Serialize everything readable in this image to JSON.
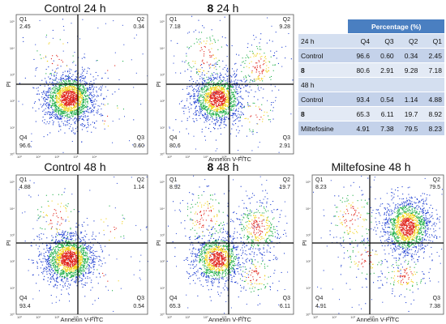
{
  "chart_data": [
    {
      "type": "scatter",
      "title_bold": "",
      "title": "Control 24 h",
      "xlabel": "Annexin V-FITC",
      "ylabel": "PI",
      "quadrants": {
        "Q1": "2.45",
        "Q2": "0.34",
        "Q3": "0.60",
        "Q4": "96.6"
      },
      "show_xlabel": false
    },
    {
      "type": "scatter",
      "title_bold": "8",
      "title": "24 h",
      "xlabel": "Annexin V-FITC",
      "ylabel": "PI",
      "quadrants": {
        "Q1": "7.18",
        "Q2": "9.28",
        "Q3": "2.91",
        "Q4": "80.6"
      },
      "show_xlabel": true
    },
    {
      "type": "scatter",
      "title_bold": "",
      "title": "Control 48 h",
      "xlabel": "Annexin V-FITC",
      "ylabel": "PI",
      "quadrants": {
        "Q1": "4.88",
        "Q2": "1.14",
        "Q3": "0.54",
        "Q4": "93.4"
      },
      "show_xlabel": true
    },
    {
      "type": "scatter",
      "title_bold": "8",
      "title": "48 h",
      "xlabel": "Annexin V-FITC",
      "ylabel": "PI",
      "quadrants": {
        "Q1": "8.92",
        "Q2": "19.7",
        "Q3": "6.11",
        "Q4": "65.3"
      },
      "show_xlabel": true
    },
    {
      "type": "scatter",
      "title_bold": "",
      "title": "Miltefosine 48 h",
      "xlabel": "Annexin V-FITC",
      "ylabel": "PI",
      "quadrants": {
        "Q1": "8.23",
        "Q2": "79.5",
        "Q3": "7.38",
        "Q4": "4.91"
      },
      "show_xlabel": true
    },
    {
      "type": "table",
      "header": "Percentage (%)",
      "columns": [
        "24 h",
        "Q4",
        "Q3",
        "Q2",
        "Q1"
      ],
      "rows": [
        {
          "label": "Control",
          "bold": false,
          "values": [
            "96.6",
            "0.60",
            "0.34",
            "2.45"
          ]
        },
        {
          "label": "8",
          "bold": true,
          "values": [
            "80.6",
            "2.91",
            "9.28",
            "7.18"
          ]
        },
        {
          "label": "48 h",
          "bold": false,
          "values": [
            "",
            "",
            "",
            ""
          ]
        },
        {
          "label": "Control",
          "bold": false,
          "values": [
            "93.4",
            "0.54",
            "1.14",
            "4.88"
          ]
        },
        {
          "label": "8",
          "bold": true,
          "values": [
            "65.3",
            "6.11",
            "19.7",
            "8.92"
          ]
        },
        {
          "label": "Miltefosine",
          "bold": false,
          "values": [
            "4.91",
            "7.38",
            "79.5",
            "8.23"
          ]
        }
      ]
    }
  ],
  "tick_labels": {
    "x": [
      "10⁰",
      "10¹",
      "10²",
      "10³",
      "10⁴"
    ],
    "y": [
      "10⁰",
      "10¹",
      "10²",
      "10³",
      "10⁴",
      "10⁵"
    ]
  },
  "colors": {
    "table_header": "#4a7fc1",
    "density_low": "#1f3fd1",
    "density_mid": "#22b04a",
    "density_high": "#f2d21b",
    "density_peak": "#e0241b"
  }
}
